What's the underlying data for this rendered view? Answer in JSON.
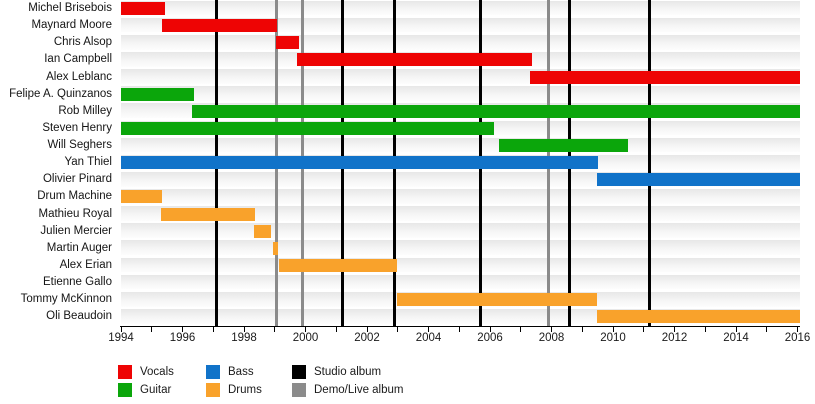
{
  "chart_data": {
    "type": "bar",
    "subtype": "band-membership-timeline",
    "title": "",
    "xlabel": "",
    "ylabel": "",
    "axis": {
      "min": 1994,
      "max": 2016.08,
      "tick_start": 1994,
      "tick_end": 2016,
      "tick_step": 1,
      "label_years": [
        1994,
        1996,
        1998,
        2000,
        2002,
        2004,
        2006,
        2008,
        2010,
        2012,
        2014,
        2016
      ]
    },
    "members": [
      {
        "name": "Michel Brisebois",
        "role": "Vocals",
        "start": 1994,
        "end": 1995.43
      },
      {
        "name": "Maynard Moore",
        "role": "Vocals",
        "start": 1995.34,
        "end": 1999.08
      },
      {
        "name": "Chris Alsop",
        "role": "Vocals",
        "start": 1999.05,
        "end": 1999.8
      },
      {
        "name": "Ian Campbell",
        "role": "Vocals",
        "start": 1999.73,
        "end": 2007.35
      },
      {
        "name": "Alex Leblanc",
        "role": "Vocals",
        "start": 2007.29,
        "end": 2016.08
      },
      {
        "name": "Felipe A. Quinzanos",
        "role": "Guitar",
        "start": 1994,
        "end": 1996.38
      },
      {
        "name": "Rob Milley",
        "role": "Guitar",
        "start": 1996.31,
        "end": 2016.08
      },
      {
        "name": "Steven Henry",
        "role": "Guitar",
        "start": 1994,
        "end": 2006.12
      },
      {
        "name": "Will Seghers",
        "role": "Guitar",
        "start": 2006.28,
        "end": 2010.48
      },
      {
        "name": "Yan Thiel",
        "role": "Bass",
        "start": 1994,
        "end": 2009.5
      },
      {
        "name": "Olivier Pinard",
        "role": "Bass",
        "start": 2009.47,
        "end": 2016.08
      },
      {
        "name": "Drum Machine",
        "role": "Drums",
        "start": 1994,
        "end": 1995.34
      },
      {
        "name": "Mathieu Royal",
        "role": "Drums",
        "start": 1995.3,
        "end": 1998.36
      },
      {
        "name": "Julien Mercier",
        "role": "Drums",
        "start": 1998.33,
        "end": 1998.89
      },
      {
        "name": "Martin Auger",
        "role": "Drums",
        "start": 1998.95,
        "end": 1999.11
      },
      {
        "name": "Alex Erian",
        "role": "Drums",
        "start": 1999.15,
        "end": 2002.96
      },
      {
        "name": "Etienne Gallo",
        "role": "Drums",
        "start": null,
        "end": null
      },
      {
        "name": "Tommy McKinnon",
        "role": "Drums",
        "start": 2002.96,
        "end": 2009.47
      },
      {
        "name": "Oli Beaudoin",
        "role": "Drums",
        "start": 2009.47,
        "end": 2016.08
      }
    ],
    "events": {
      "studio_albums": [
        1997.1,
        2001.2,
        2002.9,
        2005.7,
        2008.6,
        2011.2
      ],
      "demo_live_albums": [
        1999.05,
        1999.9,
        2007.9
      ]
    },
    "palette": {
      "Vocals": "#ee0404",
      "Guitar": "#0ba60b",
      "Bass": "#1173c9",
      "Drums": "#f9a22b",
      "studio": "#000000",
      "demo": "#8b8b8b"
    },
    "legend": {
      "position": "bottom",
      "items": [
        {
          "label": "Vocals",
          "color": "#ee0404"
        },
        {
          "label": "Guitar",
          "color": "#0ba60b"
        },
        {
          "label": "Bass",
          "color": "#1173c9"
        },
        {
          "label": "Drums",
          "color": "#f9a22b"
        },
        {
          "label": "Studio album",
          "color": "#000000"
        },
        {
          "label": "Demo/Live album",
          "color": "#8b8b8b"
        }
      ]
    }
  }
}
